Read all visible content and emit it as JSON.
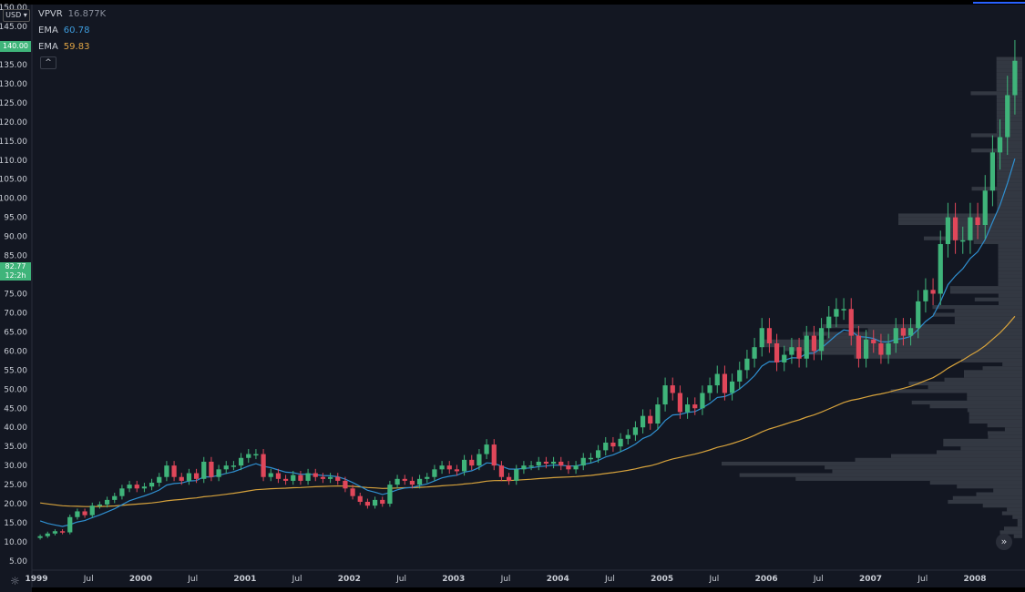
{
  "currency_selector": "USD",
  "current_price_tag": "140.00",
  "current_value_tag": {
    "line1": "82.77",
    "line2": "12:2h"
  },
  "legend": [
    {
      "name": "VPVR",
      "value": "16.877K",
      "color": "#8a8f9c"
    },
    {
      "name": "EMA",
      "value": "60.78",
      "color": "#3d9bdc"
    },
    {
      "name": "EMA",
      "value": "59.83",
      "color": "#e0a444"
    }
  ],
  "collapse_icon": "chevron-up-icon",
  "scroll_icon": "double-chevron-right-icon",
  "settings_icon": "gear-icon",
  "colors": {
    "background": "#131722",
    "up": "#3fb47a",
    "down": "#e0475a",
    "ema_fast": "#2f8fd0",
    "ema_slow": "#d6a23c",
    "volume_profile": "#3a3e48"
  },
  "chart_data": {
    "type": "candlestick",
    "title": "",
    "y_axis": {
      "min": 5,
      "max": 150,
      "ticks": [
        "150.00",
        "145.00",
        "135.00",
        "130.00",
        "125.00",
        "120.00",
        "115.00",
        "110.00",
        "105.00",
        "100.00",
        "95.00",
        "90.00",
        "85.00",
        "75.00",
        "70.00",
        "65.00",
        "60.00",
        "55.00",
        "50.00",
        "45.00",
        "40.00",
        "35.00",
        "30.00",
        "25.00",
        "20.00",
        "15.00",
        "10.00",
        "5.00"
      ]
    },
    "x_axis": {
      "labels": [
        "1999",
        "Jul",
        "2000",
        "Jul",
        "2001",
        "Jul",
        "2002",
        "Jul",
        "2003",
        "Jul",
        "2004",
        "Jul",
        "2005",
        "Jul",
        "2006",
        "Jul",
        "2007",
        "Jul",
        "2008"
      ],
      "label_dates": [
        1999.0,
        1999.5,
        2000.0,
        2000.5,
        2001.0,
        2001.5,
        2002.0,
        2002.5,
        2003.0,
        2003.5,
        2004.0,
        2004.5,
        2005.0,
        2005.5,
        2006.0,
        2006.5,
        2007.0,
        2007.5,
        2008.0
      ]
    },
    "grid": true,
    "close_series": [
      11.5,
      12.2,
      12.8,
      12.5,
      16.5,
      18,
      17,
      19.5,
      19.8,
      21,
      22,
      24,
      25,
      24,
      24.5,
      25.5,
      27,
      30,
      27,
      26,
      28,
      26.5,
      31,
      27,
      29,
      30,
      30,
      32,
      33,
      33,
      27,
      28,
      26.5,
      26,
      27.5,
      26,
      28,
      27,
      26.5,
      27,
      26,
      24,
      22,
      20.5,
      19.5,
      21,
      20,
      25,
      26.5,
      26,
      25,
      26.5,
      27,
      29,
      30,
      29,
      28.5,
      31.5,
      30,
      33,
      35.5,
      30,
      27,
      26,
      29,
      30,
      30,
      31,
      30.5,
      31,
      30,
      29,
      30,
      32,
      32,
      34,
      36,
      35,
      37,
      38,
      40,
      43,
      41,
      46,
      51,
      49,
      44,
      46,
      45,
      49,
      51,
      54,
      49,
      52,
      55,
      58,
      61,
      66,
      62,
      57,
      59,
      61,
      58,
      64,
      60,
      66,
      69,
      71,
      71,
      64,
      58,
      63,
      62,
      59,
      62,
      66,
      64,
      66,
      73,
      76,
      75,
      88,
      95,
      89,
      89,
      95,
      93,
      102,
      112,
      116,
      127,
      136
    ]
  }
}
